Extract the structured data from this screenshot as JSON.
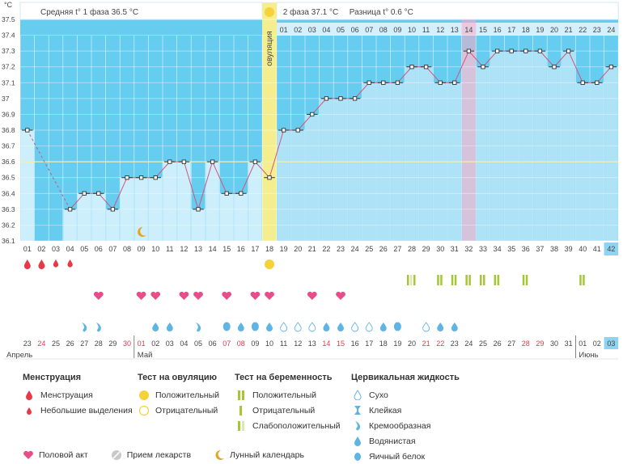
{
  "header": {
    "unit": "°C",
    "phase1_label": "Средняя t° 1 фаза",
    "phase1_value": "36.5 °C",
    "phase2_label": "2 фаза",
    "phase2_value": "37.1 °C",
    "diff_label": "Разница t°",
    "diff_value": "0.6 °C",
    "ovulation_label": "овуляция"
  },
  "chart_data": {
    "type": "line",
    "title": "",
    "ylabel": "°C",
    "ylim": [
      36.1,
      37.5
    ],
    "y_ticks": [
      "36.1",
      "36.2",
      "36.3",
      "36.4",
      "36.5",
      "36.6",
      "36.7",
      "36.8",
      "36.9",
      "37",
      "37.1",
      "37.2",
      "37.3",
      "37.4",
      "37.5"
    ],
    "cycle_days": [
      "01",
      "02",
      "03",
      "04",
      "05",
      "06",
      "07",
      "08",
      "09",
      "10",
      "11",
      "12",
      "13",
      "14",
      "15",
      "16",
      "17",
      "18",
      "19",
      "20",
      "21",
      "22",
      "23",
      "24",
      "25",
      "26",
      "27",
      "28",
      "29",
      "30",
      "31",
      "32",
      "33",
      "34",
      "35",
      "36",
      "37",
      "38",
      "39",
      "40",
      "41",
      "42"
    ],
    "phase2_days": [
      "01",
      "02",
      "03",
      "04",
      "05",
      "06",
      "07",
      "08",
      "09",
      "10",
      "11",
      "12",
      "13",
      "14",
      "15",
      "16",
      "17",
      "18",
      "19",
      "20",
      "21",
      "22",
      "23",
      "24"
    ],
    "temperatures": [
      36.8,
      null,
      null,
      36.3,
      36.4,
      36.4,
      36.3,
      36.5,
      36.5,
      36.5,
      36.6,
      36.6,
      36.3,
      36.6,
      36.4,
      36.4,
      36.6,
      36.5,
      36.8,
      36.8,
      36.9,
      37.0,
      37.0,
      37.0,
      37.1,
      37.1,
      37.1,
      37.2,
      37.2,
      37.1,
      37.1,
      37.3,
      37.2,
      37.3,
      37.3,
      37.3,
      37.3,
      37.2,
      37.3,
      37.1,
      37.1,
      37.2
    ],
    "coverline": 36.6,
    "ovulation_day": 18,
    "highlight_day": 32,
    "current_day": 42,
    "dates": [
      "23",
      "24",
      "25",
      "26",
      "27",
      "28",
      "29",
      "30",
      "01",
      "02",
      "03",
      "04",
      "05",
      "06",
      "07",
      "08",
      "09",
      "10",
      "11",
      "12",
      "13",
      "14",
      "15",
      "16",
      "17",
      "18",
      "19",
      "20",
      "21",
      "22",
      "23",
      "24",
      "25",
      "26",
      "27",
      "28",
      "29",
      "30",
      "31",
      "01",
      "02",
      "03"
    ],
    "red_dates": [
      1,
      7,
      8,
      14,
      15,
      21,
      22,
      28,
      29,
      35,
      36
    ],
    "months": [
      "Апрель",
      "Май",
      "Июнь"
    ],
    "menstruation": [
      1,
      2,
      3,
      4
    ],
    "ovulation_test_positive": [
      18
    ],
    "pregnancy_tests": [
      {
        "day": 28,
        "pattern": [
          "neg",
          "faint",
          "neg"
        ]
      },
      {
        "day": 30,
        "pattern": [
          "neg",
          "neg"
        ]
      },
      {
        "day": 31,
        "pattern": [
          "neg",
          "neg"
        ]
      },
      {
        "day": 32,
        "pattern": [
          "neg",
          "neg"
        ]
      },
      {
        "day": 33,
        "pattern": [
          "neg",
          "neg"
        ]
      },
      {
        "day": 34,
        "pattern": [
          "neg",
          "neg"
        ]
      },
      {
        "day": 36,
        "pattern": [
          "neg",
          "neg"
        ]
      },
      {
        "day": 40,
        "pattern": [
          "neg",
          "neg"
        ]
      }
    ],
    "intercourse": [
      6,
      9,
      10,
      12,
      13,
      15,
      17,
      18,
      21,
      23
    ],
    "moon_day": 9,
    "fluid": [
      {
        "day": 5,
        "kind": "cream"
      },
      {
        "day": 6,
        "kind": "cream"
      },
      {
        "day": 10,
        "kind": "water"
      },
      {
        "day": 11,
        "kind": "water"
      },
      {
        "day": 13,
        "kind": "cream"
      },
      {
        "day": 15,
        "kind": "egg"
      },
      {
        "day": 16,
        "kind": "water"
      },
      {
        "day": 17,
        "kind": "egg"
      },
      {
        "day": 18,
        "kind": "water"
      },
      {
        "day": 19,
        "kind": "dry"
      },
      {
        "day": 20,
        "kind": "dry"
      },
      {
        "day": 21,
        "kind": "dry"
      },
      {
        "day": 22,
        "kind": "water"
      },
      {
        "day": 23,
        "kind": "water"
      },
      {
        "day": 24,
        "kind": "dry"
      },
      {
        "day": 25,
        "kind": "dry"
      },
      {
        "day": 26,
        "kind": "water"
      },
      {
        "day": 27,
        "kind": "egg"
      },
      {
        "day": 29,
        "kind": "dry"
      },
      {
        "day": 30,
        "kind": "water"
      },
      {
        "day": 31,
        "kind": "water"
      }
    ]
  },
  "legend": {
    "menstruation": {
      "title": "Менструация",
      "items": [
        "Менструация",
        "Небольшие выделения"
      ]
    },
    "ovulation_test": {
      "title": "Тест на овуляцию",
      "items": [
        "Положительный",
        "Отрицательный"
      ]
    },
    "pregnancy_test": {
      "title": "Тест на беременность",
      "items": [
        "Положительный",
        "Отрицательный",
        "Слабоположительный"
      ]
    },
    "cervical": {
      "title": "Цервикальная жидкость",
      "items": [
        "Сухо",
        "Клейкая",
        "Кремообразная",
        "Водянистая",
        "Яичный белок"
      ]
    },
    "bottom": [
      "Половой акт",
      "Прием лекарств",
      "Лунный календарь"
    ]
  },
  "colors": {
    "phase1_fill": "#66ccf0",
    "phase2_fill": "#aee2f7",
    "bar_fill": "#cdeefb",
    "line": "#d6547c",
    "ovulation": "#f5ee8e",
    "highlight": "#f7a9c4",
    "heart": "#e84d8a",
    "drop_red": "#e63a49",
    "drop_blue": "#5fb4e3",
    "test_green": "#a4c637"
  }
}
